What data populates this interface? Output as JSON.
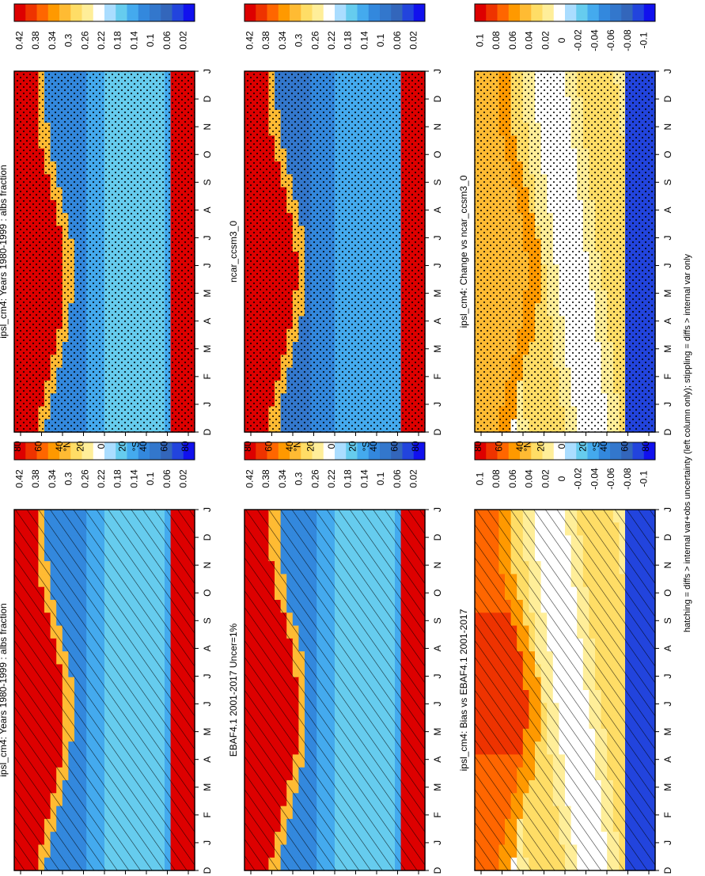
{
  "caption": "hatching = diffs > internal var+obs uncertainty (left column only); stippling = diffs > internal var only",
  "colors": {
    "abs_scale": [
      "#dd0000",
      "#ee3300",
      "#ff6600",
      "#ff9900",
      "#ffbb33",
      "#ffdd66",
      "#ffee99",
      "#ffffff",
      "#aaddff",
      "#66ccee",
      "#44aaee",
      "#3388dd",
      "#3377cc",
      "#3366bb",
      "#2244dd",
      "#1111ee"
    ],
    "diff_scale": [
      "#dd0000",
      "#ee3300",
      "#ff6600",
      "#ff9900",
      "#ffbb33",
      "#ffdd66",
      "#ffee99",
      "#ffffff",
      "#aaddff",
      "#66ccee",
      "#44aaee",
      "#3388dd",
      "#3377cc",
      "#3366bb",
      "#2244dd",
      "#1111ee"
    ]
  },
  "chart_data": [
    {
      "type": "heatmap",
      "title": "ipsl_cm4: Years 1980-1999 : albs fraction",
      "month_ticks": [
        "D",
        "J",
        "F",
        "M",
        "A",
        "M",
        "J",
        "J",
        "A",
        "S",
        "O",
        "N",
        "D",
        "J"
      ],
      "lat_ticks": [
        "80",
        "60",
        "40",
        "20",
        "0",
        "20",
        "40",
        "60",
        "80"
      ],
      "lat_hemisphere_labels": [
        "°N",
        "°S"
      ],
      "colorbar": {
        "labels": [
          "0.42",
          "0.38",
          "0.34",
          "0.3",
          "0.26",
          "0.22",
          "0.18",
          "0.14",
          "0.1",
          "0.06",
          "0.02"
        ],
        "scale": "abs_scale"
      },
      "overlay": "hatching",
      "field": "model",
      "snow_edge_shift_nh": 0
    },
    {
      "type": "heatmap",
      "title": "ipsl_cm4: Years 1980-1999 : albs fraction",
      "month_ticks": [
        "D",
        "J",
        "F",
        "M",
        "A",
        "M",
        "J",
        "J",
        "A",
        "S",
        "O",
        "N",
        "D",
        "J"
      ],
      "lat_ticks": [
        "80",
        "60",
        "40",
        "20",
        "0",
        "20",
        "40",
        "60",
        "80"
      ],
      "lat_hemisphere_labels": [
        "°N",
        "°S"
      ],
      "colorbar": {
        "labels": [
          "0.42",
          "0.38",
          "0.34",
          "0.3",
          "0.26",
          "0.22",
          "0.18",
          "0.14",
          "0.1",
          "0.06",
          "0.02"
        ],
        "scale": "abs_scale"
      },
      "overlay": "stippling",
      "field": "model",
      "snow_edge_shift_nh": 0
    },
    {
      "type": "heatmap",
      "title": "EBAF4.1 2001-2017 Uncer=1%",
      "month_ticks": [
        "D",
        "J",
        "F",
        "M",
        "A",
        "M",
        "J",
        "J",
        "A",
        "S",
        "O",
        "N",
        "D",
        "J"
      ],
      "lat_ticks": [
        "80",
        "60",
        "40",
        "20",
        "0",
        "20",
        "40",
        "60",
        "80"
      ],
      "lat_hemisphere_labels": [
        "°N",
        "°S"
      ],
      "colorbar": {
        "labels": [
          "0.42",
          "0.38",
          "0.34",
          "0.3",
          "0.26",
          "0.22",
          "0.18",
          "0.14",
          "0.1",
          "0.06",
          "0.02"
        ],
        "scale": "abs_scale"
      },
      "overlay": "hatching",
      "field": "obs",
      "snow_edge_shift_nh": 4
    },
    {
      "type": "heatmap",
      "title": "ncar_ccsm3_0",
      "month_ticks": [
        "D",
        "J",
        "F",
        "M",
        "A",
        "M",
        "J",
        "J",
        "A",
        "S",
        "O",
        "N",
        "D",
        "J"
      ],
      "lat_ticks": [
        "80",
        "60",
        "40",
        "20",
        "0",
        "20",
        "40",
        "60",
        "80"
      ],
      "lat_hemisphere_labels": [
        "°N",
        "°S"
      ],
      "colorbar": {
        "labels": [
          "0.42",
          "0.38",
          "0.34",
          "0.3",
          "0.26",
          "0.22",
          "0.18",
          "0.14",
          "0.1",
          "0.06",
          "0.02"
        ],
        "scale": "abs_scale"
      },
      "overlay": "stippling",
      "field": "model2",
      "snow_edge_shift_nh": 2
    },
    {
      "type": "heatmap",
      "title": "ipsl_cm4: Bias vs EBAF4.1 2001-2017",
      "month_ticks": [
        "D",
        "J",
        "F",
        "M",
        "A",
        "M",
        "J",
        "J",
        "A",
        "S",
        "O",
        "N",
        "D",
        "J"
      ],
      "lat_ticks": [
        "80",
        "60",
        "40",
        "20",
        "0",
        "20",
        "40",
        "60",
        "80"
      ],
      "lat_hemisphere_labels": [
        "°N",
        "°S"
      ],
      "colorbar": {
        "labels": [
          "0.1",
          "0.08",
          "0.06",
          "0.04",
          "0.02",
          "0",
          "-0.02",
          "-0.04",
          "-0.06",
          "-0.08",
          "-0.1"
        ],
        "scale": "diff_scale"
      },
      "overlay": "hatching",
      "field": "bias",
      "snow_edge_shift_nh": 0
    },
    {
      "type": "heatmap",
      "title": "ipsl_cm4: Change vs ncar_ccsm3_0",
      "month_ticks": [
        "D",
        "J",
        "F",
        "M",
        "A",
        "M",
        "J",
        "J",
        "A",
        "S",
        "O",
        "N",
        "D",
        "J"
      ],
      "lat_ticks": [
        "80",
        "60",
        "40",
        "20",
        "0",
        "20",
        "40",
        "60",
        "80"
      ],
      "lat_hemisphere_labels": [
        "°N",
        "°S"
      ],
      "colorbar": {
        "labels": [
          "0.1",
          "0.08",
          "0.06",
          "0.04",
          "0.02",
          "0",
          "-0.02",
          "-0.04",
          "-0.06",
          "-0.08",
          "-0.1"
        ],
        "scale": "diff_scale"
      },
      "overlay": "stippling",
      "field": "change",
      "snow_edge_shift_nh": 0
    }
  ]
}
